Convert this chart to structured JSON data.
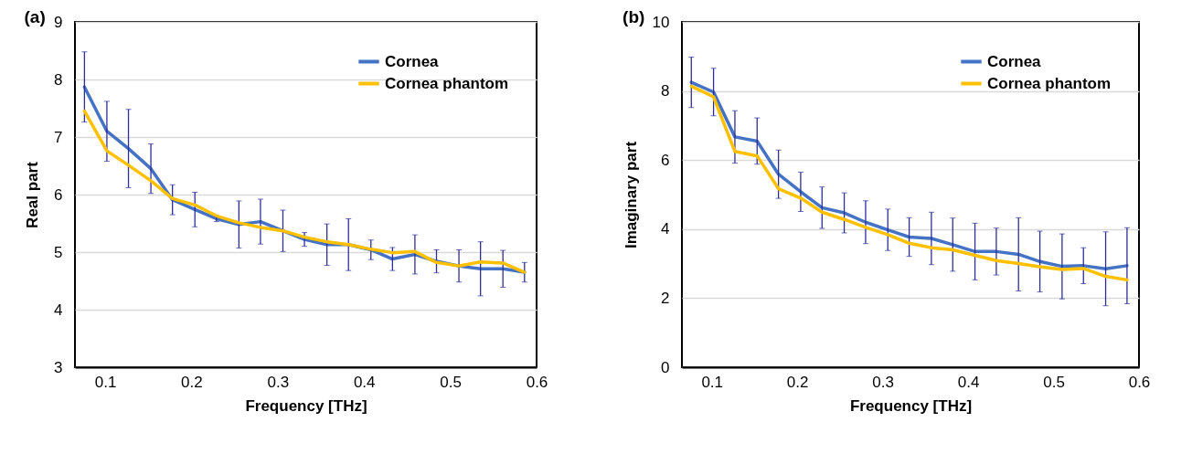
{
  "chart_data": [
    {
      "type": "line",
      "title": "(a)",
      "xlabel": "Frequency [THz]",
      "ylabel": "Real part",
      "x": [
        0.076,
        0.102,
        0.127,
        0.153,
        0.178,
        0.204,
        0.229,
        0.255,
        0.28,
        0.306,
        0.331,
        0.357,
        0.382,
        0.408,
        0.433,
        0.459,
        0.484,
        0.51,
        0.535,
        0.561,
        0.586
      ],
      "series": [
        {
          "name": "Cornea",
          "color": "#4472c4",
          "values": [
            7.87,
            7.1,
            6.8,
            6.45,
            5.91,
            5.74,
            5.58,
            5.48,
            5.53,
            5.37,
            5.22,
            5.13,
            5.13,
            5.04,
            4.88,
            4.96,
            4.84,
            4.76,
            4.71,
            4.71,
            4.65
          ],
          "errors": [
            0.61,
            0.52,
            0.68,
            0.43,
            0.26,
            0.3,
            0.05,
            0.41,
            0.39,
            0.36,
            0.12,
            0.36,
            0.45,
            0.17,
            0.2,
            0.34,
            0.2,
            0.28,
            0.47,
            0.32,
            0.17
          ]
        },
        {
          "name": "Cornea phantom",
          "color": "#ffc000",
          "values": [
            7.45,
            6.76,
            6.51,
            6.24,
            5.93,
            5.82,
            5.63,
            5.51,
            5.43,
            5.37,
            5.26,
            5.18,
            5.13,
            5.05,
            4.99,
            5.01,
            4.82,
            4.76,
            4.83,
            4.81,
            4.65
          ]
        }
      ],
      "xlim": [
        0.065,
        0.6
      ],
      "xticks": [
        0.1,
        0.2,
        0.3,
        0.4,
        0.5,
        0.6
      ],
      "ylim": [
        3,
        9
      ],
      "yticks": [
        3,
        4,
        5,
        6,
        7,
        8,
        9
      ],
      "grid": "y",
      "legend": "top right"
    },
    {
      "type": "line",
      "title": "(b)",
      "xlabel": "Frequency [THz]",
      "ylabel": "Imaginary part",
      "x": [
        0.076,
        0.102,
        0.127,
        0.153,
        0.178,
        0.204,
        0.229,
        0.255,
        0.28,
        0.306,
        0.331,
        0.357,
        0.382,
        0.408,
        0.433,
        0.459,
        0.484,
        0.51,
        0.535,
        0.561,
        0.586
      ],
      "series": [
        {
          "name": "Cornea",
          "color": "#4472c4",
          "values": [
            8.25,
            7.97,
            6.67,
            6.55,
            5.59,
            5.08,
            4.62,
            4.47,
            4.2,
            3.98,
            3.77,
            3.73,
            3.55,
            3.35,
            3.35,
            3.27,
            3.06,
            2.92,
            2.94,
            2.85,
            2.94
          ],
          "errors": [
            0.73,
            0.69,
            0.76,
            0.67,
            0.7,
            0.57,
            0.6,
            0.58,
            0.62,
            0.6,
            0.56,
            0.76,
            0.77,
            0.82,
            0.68,
            1.06,
            0.88,
            0.94,
            0.52,
            1.07,
            1.1
          ]
        },
        {
          "name": "Cornea phantom",
          "color": "#ffc000",
          "values": [
            8.14,
            7.83,
            6.25,
            6.12,
            5.17,
            4.9,
            4.49,
            4.28,
            4.05,
            3.84,
            3.59,
            3.46,
            3.4,
            3.24,
            3.09,
            3.0,
            2.91,
            2.83,
            2.86,
            2.63,
            2.53
          ]
        }
      ],
      "xlim": [
        0.065,
        0.6
      ],
      "xticks": [
        0.1,
        0.2,
        0.3,
        0.4,
        0.5,
        0.6
      ],
      "ylim": [
        0,
        10
      ],
      "yticks": [
        0,
        2,
        4,
        6,
        8,
        10
      ],
      "grid": "y",
      "legend": "top right"
    }
  ]
}
